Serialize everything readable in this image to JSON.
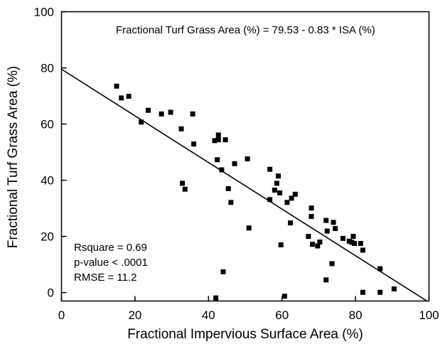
{
  "chart_data": {
    "type": "scatter",
    "title": "",
    "xlabel": "Fractional Impervious Surface Area (%)",
    "ylabel": "Fractional Turf Grass Area (%)",
    "xlim": [
      0,
      100
    ],
    "ylim": [
      -3,
      100
    ],
    "xticks": [
      0,
      20,
      40,
      60,
      80,
      100
    ],
    "yticks": [
      0,
      20,
      40,
      60,
      80,
      100
    ],
    "grid": false,
    "equation": "Fractional Turf Grass Area (%) = 79.53 - 0.83 * ISA (%)",
    "stats": [
      "Rsquare = 0.69",
      "p-value < .0001",
      "RMSE = 11.2"
    ],
    "regression": {
      "intercept": 79.53,
      "slope": -0.83
    },
    "colors": {
      "marker": "#000000",
      "line": "#000000"
    },
    "series": [
      {
        "points": [
          [
            15.0,
            73.5
          ],
          [
            16.3,
            69.3
          ],
          [
            18.3,
            69.9
          ],
          [
            21.7,
            60.7
          ],
          [
            23.6,
            64.9
          ],
          [
            27.2,
            63.6
          ],
          [
            29.7,
            64.2
          ],
          [
            32.6,
            58.3
          ],
          [
            35.7,
            63.6
          ],
          [
            36.0,
            52.9
          ],
          [
            41.7,
            54.1
          ],
          [
            42.7,
            54.4
          ],
          [
            42.7,
            56.1
          ],
          [
            44.6,
            54.4
          ],
          [
            42.4,
            47.3
          ],
          [
            50.6,
            47.6
          ],
          [
            47.1,
            45.9
          ],
          [
            43.6,
            43.7
          ],
          [
            45.4,
            37.0
          ],
          [
            46.1,
            32.1
          ],
          [
            32.9,
            38.9
          ],
          [
            33.6,
            36.8
          ],
          [
            51.0,
            23.0
          ],
          [
            56.7,
            43.9
          ],
          [
            58.0,
            36.5
          ],
          [
            58.6,
            38.9
          ],
          [
            59.0,
            41.5
          ],
          [
            59.4,
            35.5
          ],
          [
            56.7,
            33.1
          ],
          [
            61.4,
            32.1
          ],
          [
            62.6,
            33.6
          ],
          [
            63.6,
            35.0
          ],
          [
            62.3,
            24.8
          ],
          [
            59.7,
            17.0
          ],
          [
            67.2,
            20.0
          ],
          [
            68.0,
            30.1
          ],
          [
            68.0,
            27.1
          ],
          [
            69.7,
            16.6
          ],
          [
            68.3,
            17.2
          ],
          [
            70.3,
            18.0
          ],
          [
            72.0,
            25.7
          ],
          [
            72.3,
            21.9
          ],
          [
            74.0,
            25.0
          ],
          [
            74.5,
            22.8
          ],
          [
            76.6,
            19.3
          ],
          [
            79.0,
            17.9
          ],
          [
            78.3,
            18.3
          ],
          [
            79.7,
            17.5
          ],
          [
            79.4,
            20.0
          ],
          [
            81.4,
            17.5
          ],
          [
            82.0,
            15.1
          ],
          [
            72.0,
            4.5
          ],
          [
            73.6,
            10.3
          ],
          [
            44.0,
            7.4
          ],
          [
            42.0,
            -1.9
          ],
          [
            60.7,
            -1.3
          ],
          [
            82.0,
            0.1
          ],
          [
            86.7,
            0.1
          ],
          [
            86.7,
            8.5
          ],
          [
            90.5,
            1.3
          ]
        ]
      }
    ]
  }
}
